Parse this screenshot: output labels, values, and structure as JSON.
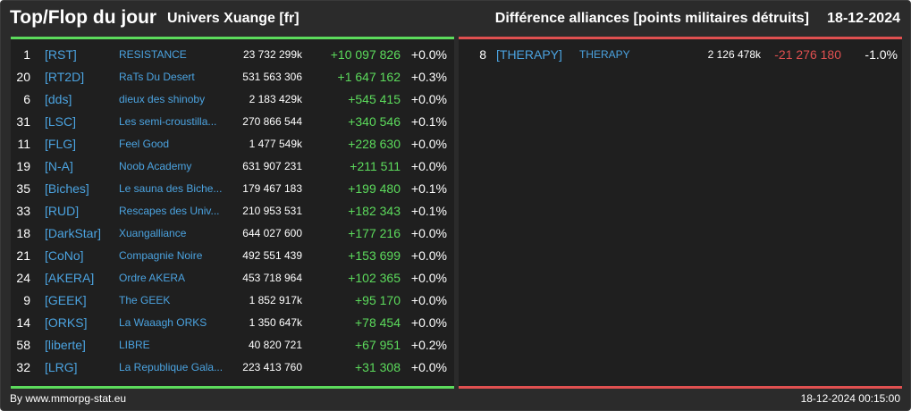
{
  "header": {
    "title": "Top/Flop du jour",
    "universe": "Univers Xuange [fr]",
    "subtitle": "Différence alliances [points militaires détruits]",
    "date": "18-12-2024"
  },
  "colors": {
    "positive": "#5cdb5c",
    "negative": "#e05050",
    "link": "#4ba3e0",
    "background": "#2b2b2b",
    "panel": "#1f1f1f"
  },
  "top": [
    {
      "rank": "1",
      "tag": "[RST]",
      "name": "RESISTANCE",
      "points": "23 732 299k",
      "diff": "+10 097 826",
      "pct": "+0.0%"
    },
    {
      "rank": "20",
      "tag": "[RT2D]",
      "name": "RaTs Du Desert",
      "points": "531 563 306",
      "diff": "+1 647 162",
      "pct": "+0.3%"
    },
    {
      "rank": "6",
      "tag": "[dds]",
      "name": "dieux des shinoby",
      "points": "2 183 429k",
      "diff": "+545 415",
      "pct": "+0.0%"
    },
    {
      "rank": "31",
      "tag": "[LSC]",
      "name": "Les semi-croustilla...",
      "points": "270 866 544",
      "diff": "+340 546",
      "pct": "+0.1%"
    },
    {
      "rank": "11",
      "tag": "[FLG]",
      "name": "Feel Good",
      "points": "1 477 549k",
      "diff": "+228 630",
      "pct": "+0.0%"
    },
    {
      "rank": "19",
      "tag": "[N-A]",
      "name": "Noob Academy",
      "points": "631 907 231",
      "diff": "+211 511",
      "pct": "+0.0%"
    },
    {
      "rank": "35",
      "tag": "[Biches]",
      "name": "Le sauna des Biche...",
      "points": "179 467 183",
      "diff": "+199 480",
      "pct": "+0.1%"
    },
    {
      "rank": "33",
      "tag": "[RUD]",
      "name": "Rescapes des Univ...",
      "points": "210 953 531",
      "diff": "+182 343",
      "pct": "+0.1%"
    },
    {
      "rank": "18",
      "tag": "[DarkStar]",
      "name": "Xuangalliance",
      "points": "644 027 600",
      "diff": "+177 216",
      "pct": "+0.0%"
    },
    {
      "rank": "21",
      "tag": "[CoNo]",
      "name": "Compagnie Noire",
      "points": "492 551 439",
      "diff": "+153 699",
      "pct": "+0.0%"
    },
    {
      "rank": "24",
      "tag": "[AKERA]",
      "name": "Ordre AKERA",
      "points": "453 718 964",
      "diff": "+102 365",
      "pct": "+0.0%"
    },
    {
      "rank": "9",
      "tag": "[GEEK]",
      "name": "The GEEK",
      "points": "1 852 917k",
      "diff": "+95 170",
      "pct": "+0.0%"
    },
    {
      "rank": "14",
      "tag": "[ORKS]",
      "name": "La Waaagh ORKS",
      "points": "1 350 647k",
      "diff": "+78 454",
      "pct": "+0.0%"
    },
    {
      "rank": "58",
      "tag": "[liberte]",
      "name": "LIBRE",
      "points": "40 820 721",
      "diff": "+67 951",
      "pct": "+0.2%"
    },
    {
      "rank": "32",
      "tag": "[LRG]",
      "name": "La Republique Gala...",
      "points": "223 413 760",
      "diff": "+31 308",
      "pct": "+0.0%"
    }
  ],
  "flop": [
    {
      "rank": "8",
      "tag": "[THERAPY]",
      "name": "THERAPY",
      "points": "2 126 478k",
      "diff": "-21 276 180",
      "pct": "-1.0%"
    }
  ],
  "footer": {
    "source": "By www.mmorpg-stat.eu",
    "timestamp": "18-12-2024 00:15:00"
  }
}
